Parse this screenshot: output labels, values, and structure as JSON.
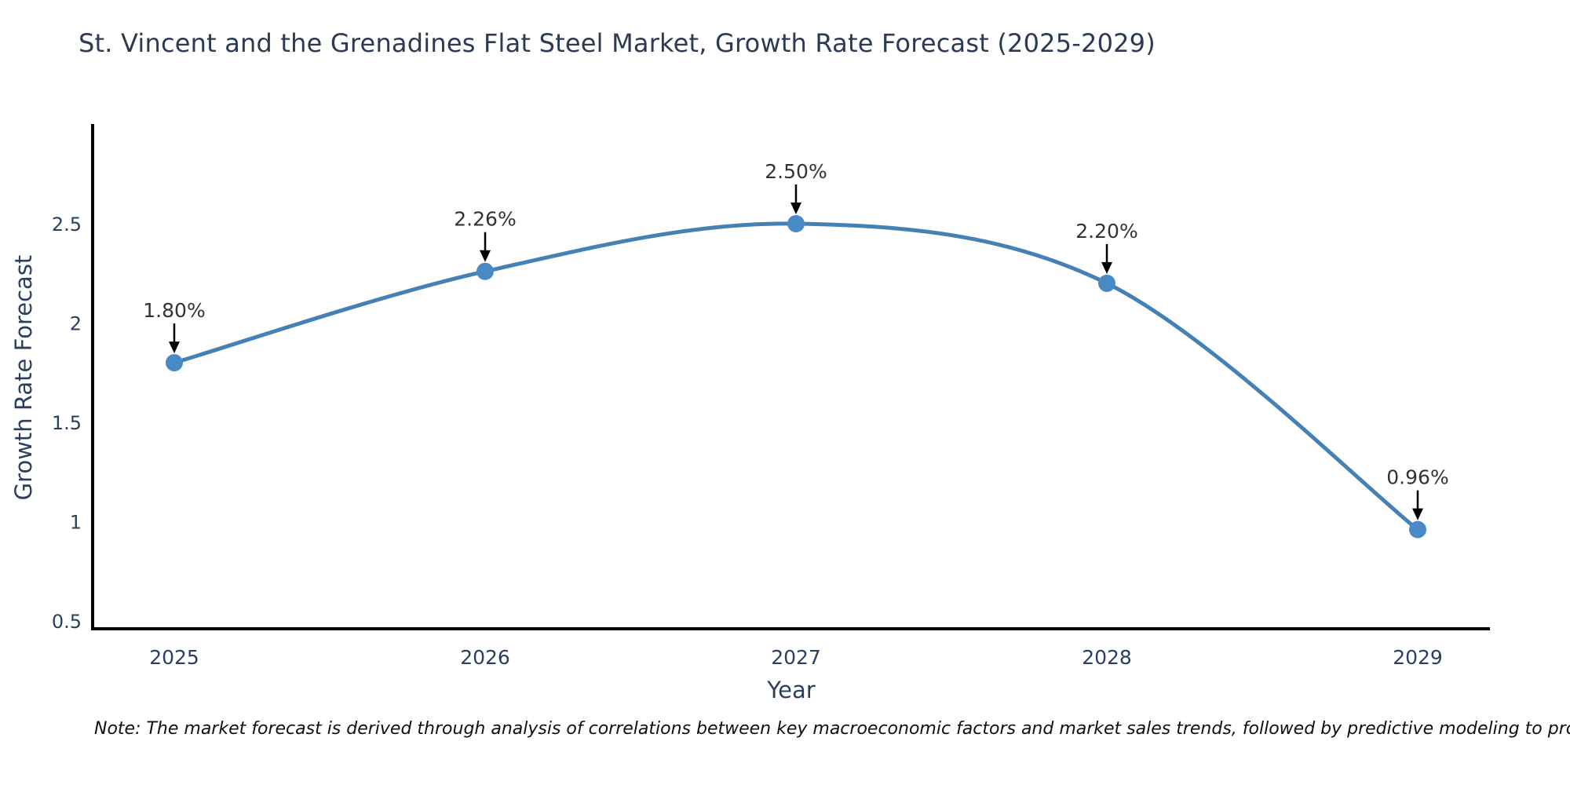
{
  "title": "St. Vincent and the Grenadines Flat Steel Market, Growth Rate Forecast (2025-2029)",
  "note": "Note: The market forecast is derived through analysis of correlations between key macroeconomic factors and market sales trends, followed by predictive modeling to project future sales",
  "chart_data": {
    "type": "line",
    "line_shape": "spline",
    "title": "St. Vincent and the Grenadines Flat Steel Market, Growth Rate Forecast (2025-2029)",
    "xlabel": "Year",
    "ylabel": "Growth Rate Forecast",
    "x": [
      2025,
      2026,
      2027,
      2028,
      2029
    ],
    "y": [
      1.8,
      2.26,
      2.5,
      2.2,
      0.96
    ],
    "point_labels": [
      "1.80%",
      "2.26%",
      "2.50%",
      "2.20%",
      "0.96%"
    ],
    "xtick_labels": [
      "2025",
      "2026",
      "2027",
      "2028",
      "2029"
    ],
    "yticks": [
      0.5,
      1,
      1.5,
      2,
      2.5
    ],
    "ytick_labels": [
      "0.5",
      "1",
      "1.5",
      "2",
      "2.5"
    ],
    "ylim": [
      0.45,
      3.0
    ],
    "grid": false,
    "legend": "none",
    "colors": {
      "line": "#4581b5",
      "marker": "#4a8ac4",
      "annotation_text": "#333333",
      "arrow": "#000000",
      "axis": "#000000",
      "tick_text": "#2a3f5f",
      "title_text": "#2b3a55"
    }
  }
}
